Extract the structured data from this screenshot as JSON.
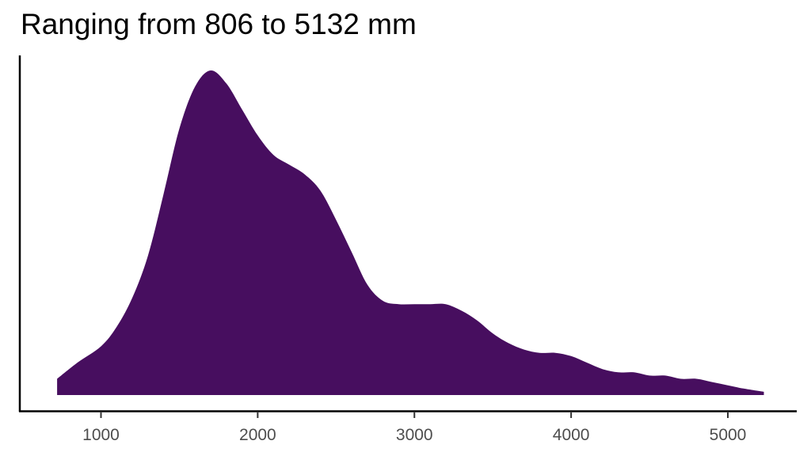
{
  "chart_data": {
    "type": "area",
    "title": "Ranging from 806 to 5132 mm",
    "xlabel": "",
    "ylabel": "",
    "xlim": [
      500,
      5450
    ],
    "ylim": [
      0,
      1.0
    ],
    "x_ticks": [
      1000,
      2000,
      3000,
      4000,
      5000
    ],
    "x_tick_labels": [
      "1000",
      "2000",
      "3000",
      "4000",
      "5000"
    ],
    "grid": false,
    "legend": "none",
    "fill_color": "#470E5F",
    "series": [
      {
        "x": [
          720,
          850,
          1000,
          1100,
          1200,
          1300,
          1400,
          1500,
          1600,
          1700,
          1800,
          1900,
          2000,
          2100,
          2200,
          2300,
          2400,
          2500,
          2600,
          2700,
          2800,
          2900,
          3000,
          3100,
          3200,
          3300,
          3400,
          3500,
          3600,
          3700,
          3800,
          3900,
          4000,
          4100,
          4200,
          4300,
          4400,
          4500,
          4600,
          4700,
          4800,
          4900,
          5000,
          5100,
          5230
        ],
        "y": [
          0.05,
          0.1,
          0.15,
          0.21,
          0.3,
          0.43,
          0.62,
          0.82,
          0.95,
          1.0,
          0.96,
          0.88,
          0.8,
          0.74,
          0.71,
          0.68,
          0.63,
          0.54,
          0.44,
          0.34,
          0.29,
          0.28,
          0.28,
          0.28,
          0.28,
          0.26,
          0.23,
          0.19,
          0.16,
          0.14,
          0.13,
          0.13,
          0.12,
          0.1,
          0.08,
          0.07,
          0.07,
          0.06,
          0.06,
          0.05,
          0.05,
          0.04,
          0.03,
          0.02,
          0.01
        ]
      }
    ]
  }
}
